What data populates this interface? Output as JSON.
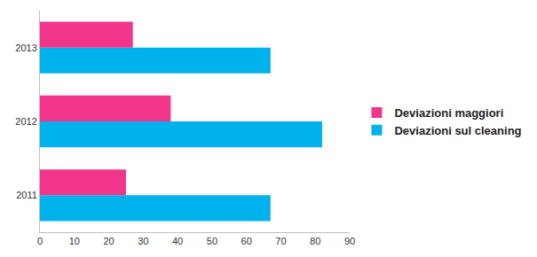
{
  "chart_data": {
    "type": "bar",
    "orientation": "horizontal",
    "categories": [
      "2011",
      "2012",
      "2013"
    ],
    "series": [
      {
        "name": "Deviazioni maggiori",
        "color": "#f0358b",
        "values": [
          25,
          38,
          27
        ]
      },
      {
        "name": "Deviazioni sul cleaning",
        "color": "#00b2ec",
        "values": [
          67,
          82,
          67
        ]
      }
    ],
    "xlim": [
      0,
      90
    ],
    "xticks": [
      0,
      10,
      20,
      30,
      40,
      50,
      60,
      70,
      80,
      90
    ],
    "grid": false,
    "legend": "right"
  }
}
